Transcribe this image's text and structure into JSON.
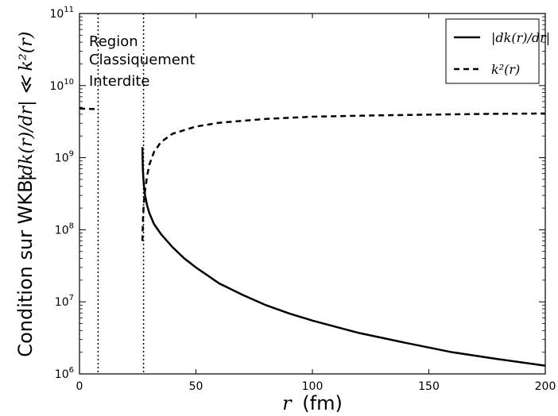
{
  "chart_data": {
    "type": "line",
    "xlabel_var": "r",
    "xlabel_unit": "(fm)",
    "ylabel_prefix": "Condition sur WKB:",
    "ylabel_math": "|dk(r)/dr| ≪ k²(r)",
    "xlim": [
      0,
      200
    ],
    "ylim": [
      1000000,
      100000000000
    ],
    "yscale": "log",
    "x_ticks": [
      0,
      50,
      100,
      150,
      200
    ],
    "y_ticks": [
      {
        "base": "10",
        "exp": "6"
      },
      {
        "base": "10",
        "exp": "7"
      },
      {
        "base": "10",
        "exp": "8"
      },
      {
        "base": "10",
        "exp": "9"
      },
      {
        "base": "10",
        "exp": "10"
      },
      {
        "base": "10",
        "exp": "11"
      }
    ],
    "annotation": [
      "Region",
      "Classiquement",
      "Interdite"
    ],
    "vlines": [
      8,
      27.5
    ],
    "legend_position": "top-right",
    "series": [
      {
        "name": "|dk(r)/dr|",
        "style": "solid",
        "x": [
          27,
          27.2,
          27.5,
          28,
          29,
          30,
          32,
          35,
          40,
          45,
          50,
          60,
          70,
          80,
          90,
          100,
          120,
          140,
          160,
          180,
          200
        ],
        "y": [
          1400000000,
          700000000,
          480000000,
          320000000,
          220000000,
          170000000,
          120000000,
          87000000,
          57000000,
          40000000,
          30000000,
          18000000,
          12500000,
          9000000,
          6900000,
          5500000,
          3700000,
          2700000,
          2000000,
          1600000,
          1300000
        ]
      },
      {
        "name": "k²(r)",
        "style": "dashed",
        "segments": [
          {
            "x": [
              0,
              8
            ],
            "y": [
              4800000000,
              4700000000
            ]
          },
          {
            "x": [
              27,
              27.3,
              27.6,
              28,
              29,
              30,
              32,
              35,
              40,
              50,
              60,
              80,
              100,
              125,
              150,
              175,
              200
            ],
            "y": [
              70000000,
              150000000,
              230000000,
              320000000,
              550000000,
              800000000,
              1200000000,
              1650000000,
              2150000000,
              2700000000,
              3050000000,
              3450000000,
              3700000000,
              3850000000,
              3950000000,
              4050000000,
              4100000000
            ]
          }
        ]
      }
    ]
  }
}
